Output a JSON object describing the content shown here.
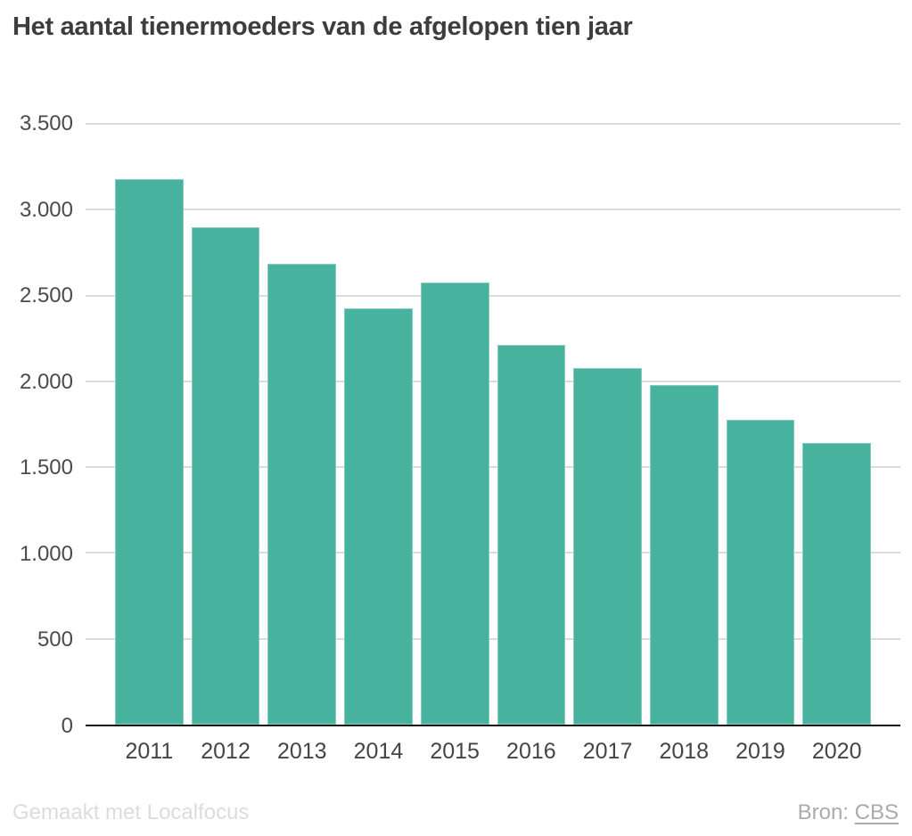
{
  "title": "Het aantal tienermoeders van de afgelopen tien jaar",
  "footer": {
    "credit": "Gemaakt met Localfocus",
    "source_label": "Bron:",
    "source_link": "CBS"
  },
  "colors": {
    "bar": "#47b29d",
    "gridline": "#dcdcdc",
    "axis_line": "#161616",
    "title_text": "#3d3d3d",
    "tick_text": "#4b4b4b",
    "credit_text": "#dcdcdc",
    "source_text": "#ababab"
  },
  "chart_data": {
    "type": "bar",
    "title": "Het aantal tienermoeders van de afgelopen tien jaar",
    "categories": [
      "2011",
      "2012",
      "2013",
      "2014",
      "2015",
      "2016",
      "2017",
      "2018",
      "2019",
      "2020"
    ],
    "values": [
      3180,
      2900,
      2685,
      2425,
      2575,
      2210,
      2075,
      1980,
      1775,
      1640
    ],
    "xlabel": "",
    "ylabel": "",
    "ylim": [
      0,
      3500
    ],
    "ytick_interval": 500,
    "yticks": [
      0,
      500,
      1000,
      1500,
      2000,
      2500,
      3000,
      3500
    ],
    "ytick_labels": [
      "0",
      "500",
      "1.000",
      "1.500",
      "2.000",
      "2.500",
      "3.000",
      "3.500"
    ],
    "grid": "horizontal",
    "legend": "none",
    "bar_color": "#47b29d"
  }
}
